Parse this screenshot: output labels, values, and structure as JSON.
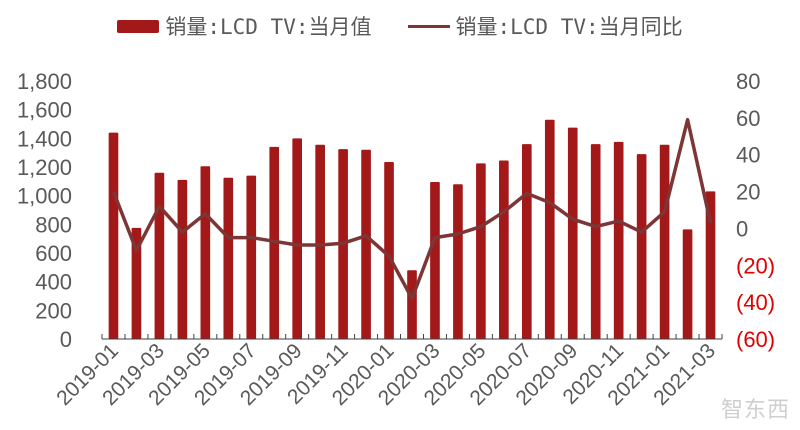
{
  "legend": {
    "bar_label": "销量:LCD TV:当月值",
    "line_label": "销量:LCD TV:当月同比"
  },
  "watermark": "智东西",
  "colors": {
    "bar": "#A31818",
    "line": "#7D3535",
    "axis_text": "#595959",
    "negative_text": "#E00000"
  },
  "chart_data": {
    "type": "bar+line",
    "title": "",
    "xlabel": "",
    "ylabel": "",
    "categories": [
      "2019-01",
      "2019-02",
      "2019-03",
      "2019-04",
      "2019-05",
      "2019-06",
      "2019-07",
      "2019-08",
      "2019-09",
      "2019-10",
      "2019-11",
      "2019-12",
      "2020-01",
      "2020-02",
      "2020-03",
      "2020-04",
      "2020-05",
      "2020-06",
      "2020-07",
      "2020-08",
      "2020-09",
      "2020-10",
      "2020-11",
      "2020-12",
      "2021-01",
      "2021-02",
      "2021-03"
    ],
    "x_tick_labels": [
      "2019-01",
      "2019-03",
      "2019-05",
      "2019-07",
      "2019-09",
      "2019-11",
      "2020-01",
      "2020-03",
      "2020-05",
      "2020-07",
      "2020-09",
      "2020-11",
      "2021-01",
      "2021-03"
    ],
    "series": [
      {
        "name": "销量:LCD TV:当月值",
        "type": "bar",
        "axis": "left",
        "values": [
          1440,
          775,
          1160,
          1110,
          1205,
          1125,
          1140,
          1340,
          1400,
          1355,
          1325,
          1320,
          1235,
          480,
          1095,
          1080,
          1225,
          1245,
          1360,
          1530,
          1475,
          1360,
          1375,
          1290,
          1355,
          765,
          1030
        ]
      },
      {
        "name": "销量:LCD TV:当月同比",
        "type": "line",
        "axis": "right",
        "values": [
          20,
          -12,
          12,
          -2,
          8,
          -5,
          -5,
          -7,
          -9,
          -9,
          -8,
          -4,
          -15,
          -38,
          -5,
          -3,
          1,
          9,
          19,
          14,
          5,
          1,
          4,
          -2,
          9,
          59,
          3
        ]
      }
    ],
    "left_axis": {
      "ylim": [
        0,
        1800
      ],
      "ticks": [
        0,
        200,
        400,
        600,
        800,
        1000,
        1200,
        1400,
        1600,
        1800
      ],
      "tick_labels": [
        "0",
        "200",
        "400",
        "600",
        "800",
        "1,000",
        "1,200",
        "1,400",
        "1,600",
        "1,800"
      ]
    },
    "right_axis": {
      "ylim": [
        -60,
        80
      ],
      "ticks": [
        80,
        60,
        40,
        20,
        0,
        -20,
        -40,
        -60
      ],
      "tick_labels": [
        "80",
        "60",
        "40",
        "20",
        "0",
        "(20)",
        "(40)",
        "(60)"
      ]
    },
    "grid": false,
    "legend_position": "top"
  }
}
